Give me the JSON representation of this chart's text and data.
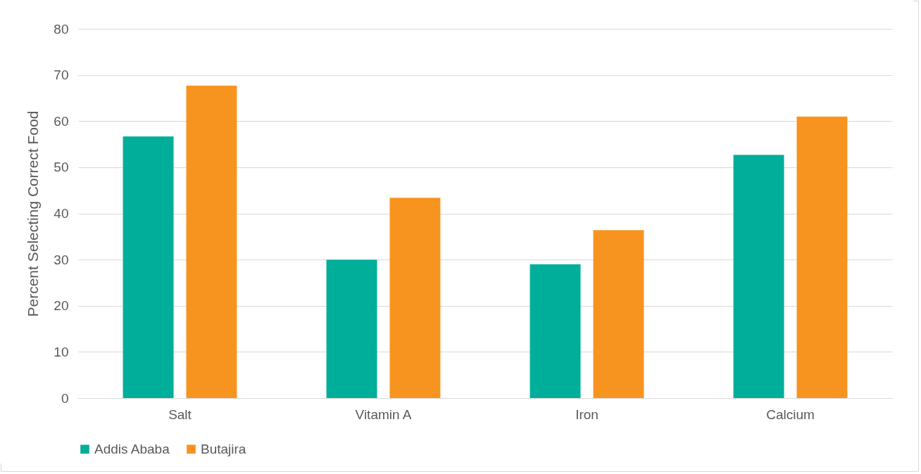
{
  "chart_data": {
    "type": "bar",
    "ylabel": "Percent Selecting Correct Food",
    "categories": [
      "Salt",
      "Vitamin A",
      "Iron",
      "Calcium"
    ],
    "series": [
      {
        "name": "Addis Ababa",
        "color": "#00ae9a",
        "values": [
          56.7,
          30.0,
          29.0,
          52.7
        ]
      },
      {
        "name": "Butajira",
        "color": "#f7941f",
        "values": [
          67.7,
          43.4,
          36.4,
          61.0
        ]
      }
    ],
    "ylim": [
      0,
      80
    ],
    "yticks": [
      0,
      10,
      20,
      30,
      40,
      50,
      60,
      70,
      80
    ],
    "grid": "y",
    "legend": "bottom"
  }
}
